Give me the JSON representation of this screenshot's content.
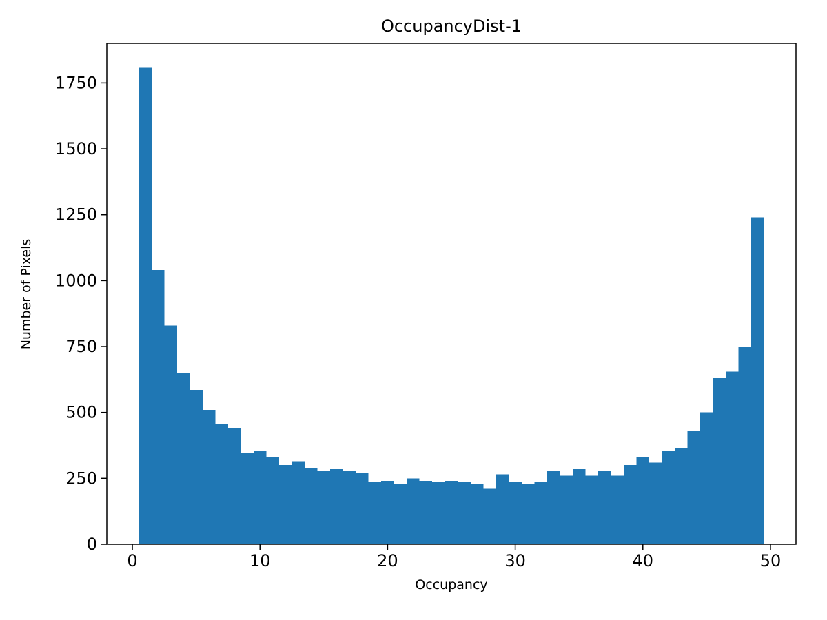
{
  "chart_data": {
    "type": "bar",
    "title": "OccupancyDist-1",
    "xlabel": "Occupancy",
    "ylabel": "Number of Pixels",
    "bar_color": "#1f77b4",
    "axis_color": "#000000",
    "bin_start": 0.5,
    "bin_width": 1.0,
    "counts": [
      1810,
      1040,
      830,
      650,
      585,
      510,
      455,
      440,
      345,
      355,
      330,
      300,
      315,
      290,
      280,
      285,
      280,
      270,
      235,
      240,
      230,
      250,
      240,
      235,
      240,
      235,
      230,
      210,
      265,
      235,
      230,
      235,
      280,
      260,
      285,
      260,
      280,
      260,
      300,
      330,
      310,
      355,
      365,
      430,
      500,
      630,
      655,
      750,
      1240
    ],
    "xlim": [
      -2,
      52
    ],
    "ylim": [
      0,
      1900
    ],
    "xticks": [
      0,
      10,
      20,
      30,
      40,
      50
    ],
    "yticks": [
      0,
      250,
      500,
      750,
      1000,
      1250,
      1500,
      1750
    ],
    "grid": false,
    "legend_position": "none"
  }
}
